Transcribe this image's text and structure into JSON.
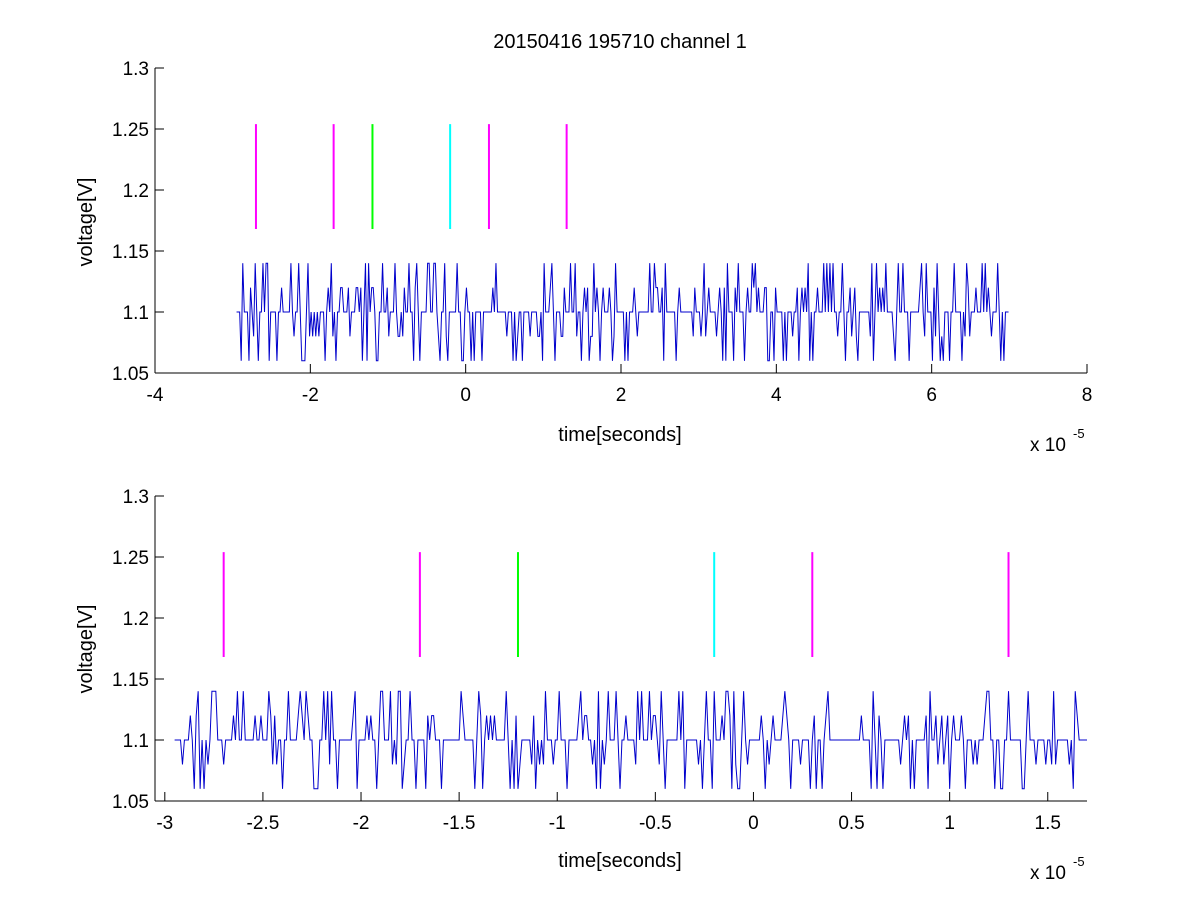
{
  "figure": {
    "title": "20150416 195710 channel 1",
    "background": "#ffffff",
    "colors": {
      "signal": "#0000cc",
      "magenta": "#ff00ff",
      "green": "#00ff00",
      "cyan": "#00ffff",
      "axes": "#000000"
    }
  },
  "chart_data": [
    {
      "type": "line",
      "xlabel": "time[seconds]",
      "ylabel": "voltage[V]",
      "x_multiplier": "x 10",
      "x_multiplier_exp": "-5",
      "xlim": [
        -4,
        8
      ],
      "ylim": [
        1.05,
        1.3
      ],
      "xticks": [
        -4,
        -2,
        0,
        2,
        4,
        6,
        8
      ],
      "xtick_labels": [
        "-4",
        "-2",
        "0",
        "2",
        "4",
        "6",
        "8"
      ],
      "yticks": [
        1.05,
        1.1,
        1.15,
        1.2,
        1.25,
        1.3
      ],
      "ytick_labels": [
        "1.05",
        "1.1",
        "1.15",
        "1.2",
        "1.25",
        "1.3"
      ],
      "grid": false,
      "series": [
        {
          "kind": "signal",
          "color": "signal",
          "x_range": [
            -2.95,
            7.0
          ],
          "levels": [
            1.06,
            1.08,
            1.1,
            1.12,
            1.14
          ],
          "baseline": 1.1,
          "sample_step": 0.02
        }
      ],
      "markers": [
        {
          "x": -2.7,
          "y0": 1.168,
          "y1": 1.254,
          "color": "magenta"
        },
        {
          "x": -1.7,
          "y0": 1.168,
          "y1": 1.254,
          "color": "magenta"
        },
        {
          "x": -1.2,
          "y0": 1.168,
          "y1": 1.254,
          "color": "green"
        },
        {
          "x": -0.2,
          "y0": 1.168,
          "y1": 1.254,
          "color": "cyan"
        },
        {
          "x": 0.3,
          "y0": 1.168,
          "y1": 1.254,
          "color": "magenta"
        },
        {
          "x": 1.3,
          "y0": 1.168,
          "y1": 1.254,
          "color": "magenta"
        }
      ]
    },
    {
      "type": "line",
      "xlabel": "time[seconds]",
      "ylabel": "voltage[V]",
      "x_multiplier": "x 10",
      "x_multiplier_exp": "-5",
      "xlim": [
        -3.05,
        1.7
      ],
      "ylim": [
        1.05,
        1.3
      ],
      "xticks": [
        -3,
        -2.5,
        -2,
        -1.5,
        -1,
        -0.5,
        0,
        0.5,
        1,
        1.5
      ],
      "xtick_labels": [
        "-3",
        "-2.5",
        "-2",
        "-1.5",
        "-1",
        "-0.5",
        "0",
        "0.5",
        "1",
        "1.5"
      ],
      "yticks": [
        1.05,
        1.1,
        1.15,
        1.2,
        1.25,
        1.3
      ],
      "ytick_labels": [
        "1.05",
        "1.1",
        "1.15",
        "1.2",
        "1.25",
        "1.3"
      ],
      "grid": false,
      "series": [
        {
          "kind": "signal",
          "color": "signal",
          "x_range": [
            -2.95,
            1.7
          ],
          "levels": [
            1.06,
            1.08,
            1.1,
            1.12,
            1.14
          ],
          "baseline": 1.1,
          "sample_step": 0.01
        }
      ],
      "markers": [
        {
          "x": -2.7,
          "y0": 1.168,
          "y1": 1.254,
          "color": "magenta"
        },
        {
          "x": -1.7,
          "y0": 1.168,
          "y1": 1.254,
          "color": "magenta"
        },
        {
          "x": -1.2,
          "y0": 1.168,
          "y1": 1.254,
          "color": "green"
        },
        {
          "x": -0.2,
          "y0": 1.168,
          "y1": 1.254,
          "color": "cyan"
        },
        {
          "x": 0.3,
          "y0": 1.168,
          "y1": 1.254,
          "color": "magenta"
        },
        {
          "x": 1.3,
          "y0": 1.168,
          "y1": 1.254,
          "color": "magenta"
        }
      ]
    }
  ]
}
